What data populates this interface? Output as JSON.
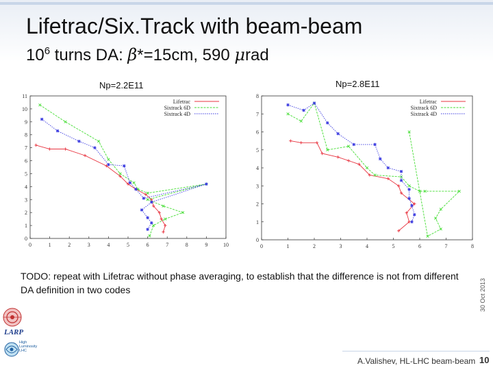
{
  "slide": {
    "title": "Lifetrac/Six.Track with beam-beam",
    "subtitle_base": "10",
    "subtitle_exp": "6",
    "subtitle_mid": " turns DA: ",
    "subtitle_beta": "β",
    "subtitle_tail": "*=15cm, 590 ",
    "subtitle_mu": "μ",
    "subtitle_unit": "rad",
    "note": "TODO: repeat with Lifetrac without phase averaging, to establish that the difference is not from different DA definition in two codes",
    "date": "30 Oct 2013",
    "footer": "A.Valishev, HL-LHC beam-beam",
    "page": "10",
    "logo_text": "LARP",
    "logo2_text": "High Luminosity LHC"
  },
  "chart_data": [
    {
      "type": "line",
      "title": "Np=2.2E11",
      "xlim": [
        0,
        10
      ],
      "ylim": [
        0,
        11
      ],
      "xticks": [
        "0",
        "1",
        "2",
        "3",
        "4",
        "5",
        "6",
        "7",
        "8",
        "9",
        "10"
      ],
      "yticks": [
        "0",
        "1",
        "2",
        "3",
        "4",
        "5",
        "6",
        "7",
        "8",
        "9",
        "10",
        "11"
      ],
      "legend_position": "top-right",
      "series": [
        {
          "name": "Lifetrac",
          "color": "#e8333f",
          "marker": "+",
          "points": [
            [
              0.3,
              7.2
            ],
            [
              1.0,
              6.9
            ],
            [
              1.8,
              6.9
            ],
            [
              2.8,
              6.4
            ],
            [
              3.9,
              5.6
            ],
            [
              4.6,
              4.8
            ],
            [
              5.0,
              4.2
            ],
            [
              5.4,
              3.8
            ],
            [
              5.9,
              3.4
            ],
            [
              6.2,
              3.0
            ],
            [
              6.3,
              2.5
            ],
            [
              6.6,
              2.0
            ],
            [
              6.7,
              1.5
            ],
            [
              6.9,
              1.0
            ],
            [
              6.8,
              0.5
            ]
          ]
        },
        {
          "name": "Sixtrack 6D",
          "color": "#44dd33",
          "marker": "x",
          "points": [
            [
              0.5,
              10.3
            ],
            [
              1.8,
              9.0
            ],
            [
              3.5,
              7.5
            ],
            [
              4.0,
              6.1
            ],
            [
              4.6,
              5.0
            ],
            [
              5.3,
              4.3
            ],
            [
              5.5,
              3.8
            ],
            [
              6.0,
              3.5
            ],
            [
              9.0,
              4.2
            ],
            [
              6.0,
              3.0
            ],
            [
              6.8,
              2.5
            ],
            [
              7.8,
              2.0
            ],
            [
              6.9,
              1.5
            ],
            [
              6.3,
              1.0
            ],
            [
              6.1,
              0.2
            ]
          ]
        },
        {
          "name": "Sixtrack 4D",
          "color": "#3a3ae0",
          "marker": "*",
          "points": [
            [
              0.6,
              9.2
            ],
            [
              1.4,
              8.3
            ],
            [
              2.5,
              7.5
            ],
            [
              3.3,
              7.0
            ],
            [
              4.0,
              5.7
            ],
            [
              4.8,
              5.6
            ],
            [
              5.1,
              4.3
            ],
            [
              5.4,
              3.8
            ],
            [
              5.8,
              3.1
            ],
            [
              9.0,
              4.2
            ],
            [
              6.2,
              2.8
            ],
            [
              5.7,
              2.2
            ],
            [
              6.0,
              1.6
            ],
            [
              6.2,
              1.2
            ],
            [
              6.0,
              0.7
            ]
          ]
        }
      ]
    },
    {
      "type": "line",
      "title": "Np=2.8E11",
      "xlim": [
        0,
        8
      ],
      "ylim": [
        0,
        8
      ],
      "xticks": [
        "0",
        "1",
        "2",
        "3",
        "4",
        "5",
        "6",
        "7",
        "8"
      ],
      "yticks": [
        "0",
        "1",
        "2",
        "3",
        "4",
        "5",
        "6",
        "7",
        "8"
      ],
      "legend_position": "top-right",
      "series": [
        {
          "name": "Lifetrac",
          "color": "#e8333f",
          "marker": "+",
          "points": [
            [
              1.1,
              5.5
            ],
            [
              1.5,
              5.4
            ],
            [
              2.1,
              5.4
            ],
            [
              2.3,
              4.8
            ],
            [
              2.9,
              4.6
            ],
            [
              3.3,
              4.4
            ],
            [
              3.7,
              4.2
            ],
            [
              4.1,
              3.6
            ],
            [
              4.8,
              3.4
            ],
            [
              5.2,
              3.0
            ],
            [
              5.3,
              2.6
            ],
            [
              5.8,
              2.0
            ],
            [
              5.5,
              1.5
            ],
            [
              5.6,
              1.0
            ],
            [
              5.2,
              0.5
            ]
          ]
        },
        {
          "name": "Sixtrack 6D",
          "color": "#44dd33",
          "marker": "x",
          "points": [
            [
              1.0,
              7.0
            ],
            [
              1.5,
              6.6
            ],
            [
              2.0,
              7.6
            ],
            [
              2.5,
              5.0
            ],
            [
              3.3,
              5.2
            ],
            [
              4.0,
              4.0
            ],
            [
              4.3,
              3.6
            ],
            [
              5.3,
              3.5
            ],
            [
              5.6,
              3.0
            ],
            [
              6.0,
              2.7
            ],
            [
              6.2,
              2.7
            ],
            [
              7.5,
              2.7
            ],
            [
              6.8,
              1.7
            ],
            [
              6.6,
              1.2
            ],
            [
              6.8,
              0.6
            ],
            [
              6.3,
              0.2
            ],
            [
              5.6,
              6.0
            ]
          ]
        },
        {
          "name": "Sixtrack 4D",
          "color": "#3a3ae0",
          "marker": "*",
          "points": [
            [
              1.0,
              7.5
            ],
            [
              1.6,
              7.2
            ],
            [
              2.0,
              7.6
            ],
            [
              2.5,
              6.5
            ],
            [
              2.9,
              5.9
            ],
            [
              3.5,
              5.3
            ],
            [
              4.3,
              5.3
            ],
            [
              4.5,
              4.5
            ],
            [
              4.8,
              4.0
            ],
            [
              5.3,
              3.8
            ],
            [
              5.3,
              3.3
            ],
            [
              5.6,
              2.8
            ],
            [
              5.6,
              2.3
            ],
            [
              5.7,
              1.9
            ],
            [
              5.8,
              1.4
            ],
            [
              5.7,
              1.0
            ]
          ]
        }
      ]
    }
  ]
}
